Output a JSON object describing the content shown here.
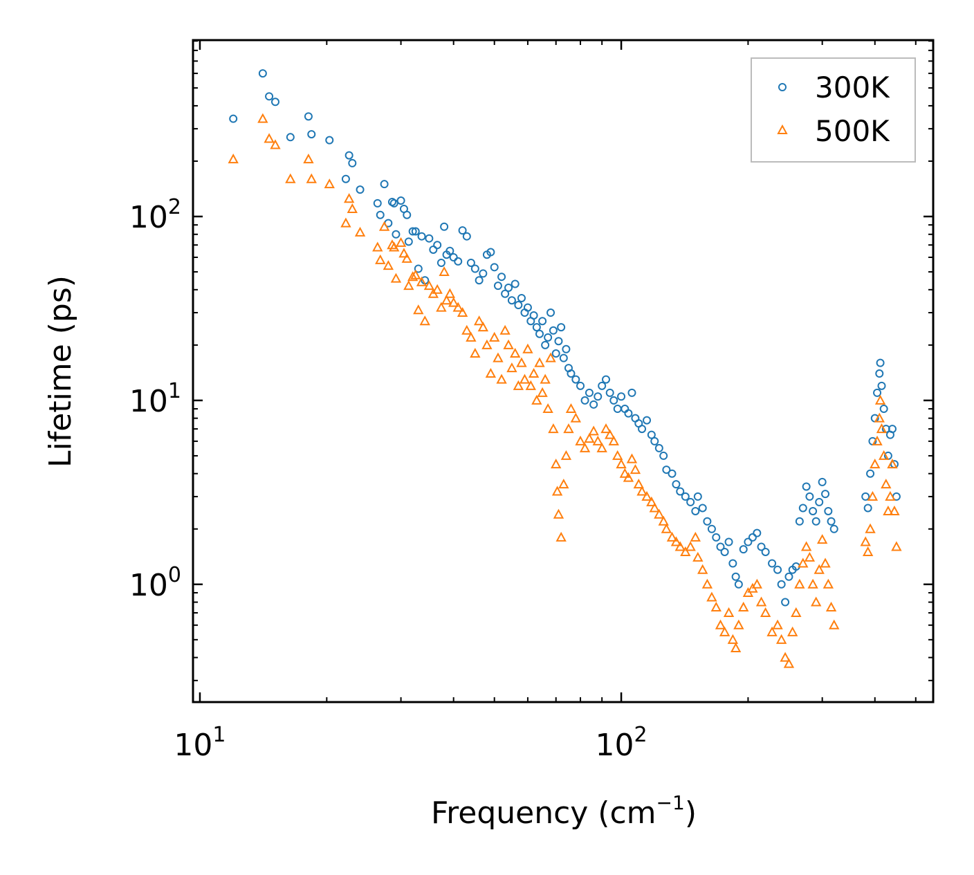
{
  "chart_data": {
    "type": "scatter",
    "title": "",
    "xlabel": "Frequency (cm",
    "xlabel_sup": "−1",
    "xlabel_end": ")",
    "ylabel": "Lifetime (ps)",
    "xscale": "log",
    "yscale": "log",
    "xlim": [
      9.63,
      550
    ],
    "ylim": [
      0.229,
      910
    ],
    "grid": false,
    "legend_position": "top-right",
    "x_ticks": [
      {
        "value": 10,
        "base": "10",
        "exp": "1"
      },
      {
        "value": 100,
        "base": "10",
        "exp": "2"
      }
    ],
    "y_ticks": [
      {
        "value": 1,
        "base": "10",
        "exp": "0"
      },
      {
        "value": 10,
        "base": "10",
        "exp": "1"
      },
      {
        "value": 100,
        "base": "10",
        "exp": "2"
      }
    ],
    "series": [
      {
        "name": "300K",
        "marker": "circle",
        "color": "#1f77b4",
        "points": [
          [
            12,
            340
          ],
          [
            14.1,
            600
          ],
          [
            14.6,
            450
          ],
          [
            15.1,
            420
          ],
          [
            16.4,
            270
          ],
          [
            18.1,
            350
          ],
          [
            18.4,
            280
          ],
          [
            20.3,
            260
          ],
          [
            22.2,
            160
          ],
          [
            22.6,
            215
          ],
          [
            23,
            195
          ],
          [
            24,
            140
          ],
          [
            26.4,
            118
          ],
          [
            26.8,
            102
          ],
          [
            27.4,
            150
          ],
          [
            28,
            92
          ],
          [
            28.6,
            120
          ],
          [
            28.9,
            118
          ],
          [
            29.2,
            80
          ],
          [
            30,
            122
          ],
          [
            30.5,
            110
          ],
          [
            31,
            102
          ],
          [
            31.3,
            73
          ],
          [
            32,
            83
          ],
          [
            32.5,
            83
          ],
          [
            33,
            52
          ],
          [
            33.6,
            78
          ],
          [
            34.2,
            45
          ],
          [
            35,
            76
          ],
          [
            35.8,
            66
          ],
          [
            36.6,
            70
          ],
          [
            37.4,
            56
          ],
          [
            38,
            88
          ],
          [
            38.5,
            62
          ],
          [
            39.2,
            65
          ],
          [
            40,
            60
          ],
          [
            41,
            57
          ],
          [
            42,
            84
          ],
          [
            43,
            78
          ],
          [
            44,
            56
          ],
          [
            45,
            52
          ],
          [
            46,
            45
          ],
          [
            47,
            49
          ],
          [
            48,
            62
          ],
          [
            49,
            64
          ],
          [
            50,
            53
          ],
          [
            51,
            42
          ],
          [
            52,
            47
          ],
          [
            53,
            38
          ],
          [
            54,
            41
          ],
          [
            55,
            35
          ],
          [
            56,
            43
          ],
          [
            57,
            33
          ],
          [
            58,
            36
          ],
          [
            59,
            30
          ],
          [
            60,
            32
          ],
          [
            61,
            27
          ],
          [
            62,
            29
          ],
          [
            63,
            25
          ],
          [
            64,
            23
          ],
          [
            65,
            27
          ],
          [
            66,
            20
          ],
          [
            67,
            22
          ],
          [
            68,
            30
          ],
          [
            69,
            24
          ],
          [
            70,
            18
          ],
          [
            71,
            21
          ],
          [
            72,
            25
          ],
          [
            73,
            17
          ],
          [
            74,
            19
          ],
          [
            75,
            15
          ],
          [
            76,
            14
          ],
          [
            78,
            13
          ],
          [
            80,
            12
          ],
          [
            82,
            10
          ],
          [
            84,
            11
          ],
          [
            86,
            9.5
          ],
          [
            88,
            10.5
          ],
          [
            90,
            12
          ],
          [
            92,
            13
          ],
          [
            94,
            11
          ],
          [
            96,
            10
          ],
          [
            98,
            9
          ],
          [
            100,
            10.5
          ],
          [
            102,
            9
          ],
          [
            104,
            8.5
          ],
          [
            106,
            11
          ],
          [
            108,
            8
          ],
          [
            110,
            7.5
          ],
          [
            112,
            7
          ],
          [
            115,
            7.8
          ],
          [
            118,
            6.5
          ],
          [
            120,
            6
          ],
          [
            123,
            5.5
          ],
          [
            126,
            5
          ],
          [
            128,
            4.2
          ],
          [
            132,
            4
          ],
          [
            135,
            3.5
          ],
          [
            138,
            3.2
          ],
          [
            142,
            3
          ],
          [
            146,
            2.8
          ],
          [
            150,
            2.5
          ],
          [
            152,
            3
          ],
          [
            156,
            2.6
          ],
          [
            160,
            2.2
          ],
          [
            164,
            2
          ],
          [
            168,
            1.8
          ],
          [
            172,
            1.6
          ],
          [
            176,
            1.5
          ],
          [
            180,
            1.7
          ],
          [
            184,
            1.3
          ],
          [
            187,
            1.1
          ],
          [
            190,
            1.0
          ],
          [
            195,
            1.55
          ],
          [
            200,
            1.7
          ],
          [
            205,
            1.8
          ],
          [
            210,
            1.9
          ],
          [
            215,
            1.6
          ],
          [
            220,
            1.5
          ],
          [
            228,
            1.3
          ],
          [
            235,
            1.2
          ],
          [
            240,
            1.0
          ],
          [
            245,
            0.8
          ],
          [
            250,
            1.1
          ],
          [
            255,
            1.2
          ],
          [
            260,
            1.25
          ],
          [
            265,
            2.2
          ],
          [
            270,
            2.6
          ],
          [
            275,
            3.4
          ],
          [
            280,
            3.0
          ],
          [
            285,
            2.5
          ],
          [
            290,
            2.2
          ],
          [
            295,
            2.8
          ],
          [
            300,
            3.6
          ],
          [
            305,
            3.1
          ],
          [
            310,
            2.5
          ],
          [
            315,
            2.2
          ],
          [
            320,
            2.0
          ],
          [
            380,
            3.0
          ],
          [
            385,
            2.6
          ],
          [
            390,
            4
          ],
          [
            395,
            6
          ],
          [
            400,
            8
          ],
          [
            405,
            11
          ],
          [
            410,
            14
          ],
          [
            412,
            16
          ],
          [
            415,
            12
          ],
          [
            420,
            9
          ],
          [
            425,
            7
          ],
          [
            430,
            5
          ],
          [
            435,
            6.5
          ],
          [
            440,
            7
          ],
          [
            445,
            4.5
          ],
          [
            450,
            3
          ]
        ]
      },
      {
        "name": "500K",
        "marker": "triangle",
        "color": "#ff7f0e",
        "points": [
          [
            12,
            205
          ],
          [
            14.1,
            340
          ],
          [
            14.6,
            265
          ],
          [
            15.1,
            245
          ],
          [
            16.4,
            160
          ],
          [
            18.1,
            205
          ],
          [
            18.4,
            160
          ],
          [
            20.3,
            150
          ],
          [
            22.2,
            92
          ],
          [
            22.6,
            125
          ],
          [
            23,
            110
          ],
          [
            24,
            82
          ],
          [
            26.4,
            68
          ],
          [
            26.8,
            58
          ],
          [
            27.4,
            88
          ],
          [
            28,
            54
          ],
          [
            28.6,
            70
          ],
          [
            28.9,
            68
          ],
          [
            29.2,
            46
          ],
          [
            30,
            72
          ],
          [
            30.5,
            63
          ],
          [
            31,
            59
          ],
          [
            31.3,
            42
          ],
          [
            32,
            47
          ],
          [
            32.5,
            48
          ],
          [
            33,
            31
          ],
          [
            33.6,
            44
          ],
          [
            34.2,
            27
          ],
          [
            35,
            42
          ],
          [
            35.8,
            38
          ],
          [
            36.6,
            40
          ],
          [
            37.4,
            32
          ],
          [
            38,
            50
          ],
          [
            38.5,
            35
          ],
          [
            39.2,
            38
          ],
          [
            40,
            34
          ],
          [
            41,
            32
          ],
          [
            42,
            30
          ],
          [
            43,
            24
          ],
          [
            44,
            22
          ],
          [
            45,
            18
          ],
          [
            46,
            27
          ],
          [
            47,
            25
          ],
          [
            48,
            20
          ],
          [
            49,
            14
          ],
          [
            50,
            22
          ],
          [
            51,
            17
          ],
          [
            52,
            13
          ],
          [
            53,
            24
          ],
          [
            54,
            20
          ],
          [
            55,
            15
          ],
          [
            56,
            18
          ],
          [
            57,
            12
          ],
          [
            58,
            16
          ],
          [
            59,
            13
          ],
          [
            60,
            19
          ],
          [
            61,
            12
          ],
          [
            62,
            14
          ],
          [
            63,
            10
          ],
          [
            64,
            16
          ],
          [
            65,
            11
          ],
          [
            66,
            13
          ],
          [
            67,
            9
          ],
          [
            68,
            17
          ],
          [
            69,
            7
          ],
          [
            70,
            4.5
          ],
          [
            70.5,
            3.2
          ],
          [
            71,
            2.4
          ],
          [
            72,
            1.8
          ],
          [
            73,
            3.5
          ],
          [
            74,
            5
          ],
          [
            75,
            7
          ],
          [
            76,
            9
          ],
          [
            78,
            8
          ],
          [
            80,
            6
          ],
          [
            82,
            5.5
          ],
          [
            84,
            6.2
          ],
          [
            86,
            6.8
          ],
          [
            88,
            6
          ],
          [
            90,
            5.5
          ],
          [
            92,
            7
          ],
          [
            94,
            6.5
          ],
          [
            96,
            6
          ],
          [
            98,
            5
          ],
          [
            100,
            4.5
          ],
          [
            102,
            4
          ],
          [
            104,
            3.8
          ],
          [
            106,
            4.8
          ],
          [
            108,
            4.2
          ],
          [
            110,
            3.5
          ],
          [
            112,
            3.2
          ],
          [
            115,
            3
          ],
          [
            118,
            2.8
          ],
          [
            120,
            2.6
          ],
          [
            123,
            2.4
          ],
          [
            126,
            2.2
          ],
          [
            128,
            2.0
          ],
          [
            132,
            1.8
          ],
          [
            135,
            1.7
          ],
          [
            138,
            1.6
          ],
          [
            142,
            1.5
          ],
          [
            146,
            1.6
          ],
          [
            150,
            1.8
          ],
          [
            152,
            1.4
          ],
          [
            156,
            1.2
          ],
          [
            160,
            1.0
          ],
          [
            164,
            0.85
          ],
          [
            168,
            0.75
          ],
          [
            172,
            0.6
          ],
          [
            176,
            0.55
          ],
          [
            180,
            0.7
          ],
          [
            184,
            0.5
          ],
          [
            187,
            0.45
          ],
          [
            190,
            0.6
          ],
          [
            195,
            0.75
          ],
          [
            200,
            0.9
          ],
          [
            205,
            0.95
          ],
          [
            210,
            1.0
          ],
          [
            215,
            0.8
          ],
          [
            220,
            0.7
          ],
          [
            228,
            0.55
          ],
          [
            235,
            0.6
          ],
          [
            240,
            0.5
          ],
          [
            245,
            0.4
          ],
          [
            250,
            0.37
          ],
          [
            255,
            0.55
          ],
          [
            260,
            0.7
          ],
          [
            265,
            1.0
          ],
          [
            270,
            1.3
          ],
          [
            275,
            1.6
          ],
          [
            280,
            1.4
          ],
          [
            285,
            1.0
          ],
          [
            290,
            0.8
          ],
          [
            295,
            1.2
          ],
          [
            300,
            1.75
          ],
          [
            305,
            1.3
          ],
          [
            310,
            1.0
          ],
          [
            315,
            0.75
          ],
          [
            320,
            0.6
          ],
          [
            380,
            1.7
          ],
          [
            385,
            1.5
          ],
          [
            390,
            2
          ],
          [
            395,
            3
          ],
          [
            400,
            4.5
          ],
          [
            405,
            6
          ],
          [
            410,
            8
          ],
          [
            412,
            10
          ],
          [
            415,
            7
          ],
          [
            420,
            5
          ],
          [
            425,
            3.5
          ],
          [
            430,
            2.5
          ],
          [
            435,
            3
          ],
          [
            440,
            4.5
          ],
          [
            445,
            2.5
          ],
          [
            450,
            1.6
          ]
        ]
      }
    ]
  }
}
